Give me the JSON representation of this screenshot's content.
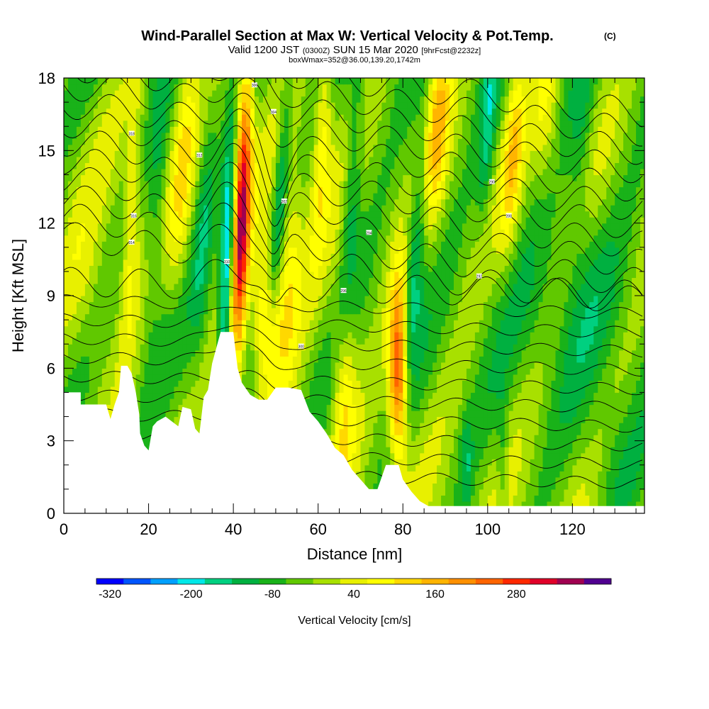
{
  "chart_data": {
    "type": "heatmap",
    "title": "Wind-Parallel Section at Max W: Vertical Velocity & Pot.Temp.",
    "title_mark": "(C)",
    "subtitle_prefix": "Valid 1200 JST",
    "subtitle_zulu": "(0300Z)",
    "subtitle_date": "SUN 15 Mar 2020",
    "subtitle_run": "[9hrFcst@2232z]",
    "subtitle2": "boxWmax=352@36.00,139.20,1742m",
    "xlabel": "Distance [nm]",
    "ylabel": "Height [Kft MSL]",
    "xlim": [
      0,
      137
    ],
    "ylim": [
      0,
      18
    ],
    "xticks": [
      0,
      20,
      40,
      60,
      80,
      100,
      120
    ],
    "yticks": [
      0,
      3,
      6,
      9,
      12,
      15,
      18
    ],
    "colorbar": {
      "label": "Vertical Velocity [cm/s]",
      "min": -340,
      "step": 40,
      "colors": [
        "#0000ff",
        "#0055ff",
        "#00a0ff",
        "#00e8e8",
        "#00d080",
        "#00b040",
        "#19b219",
        "#60c800",
        "#a8e000",
        "#e8f000",
        "#ffff00",
        "#ffd800",
        "#ffb400",
        "#ff9000",
        "#ff6400",
        "#ff2800",
        "#e00028",
        "#a00050",
        "#500090"
      ],
      "tick_labels": [
        "-320",
        "-200",
        "-80",
        "40",
        "160",
        "280"
      ],
      "tick_values": [
        -320,
        -200,
        -80,
        40,
        160,
        280
      ]
    },
    "terrain_kft": [
      [
        0,
        5
      ],
      [
        4,
        5
      ],
      [
        4,
        4.5
      ],
      [
        10,
        4.5
      ],
      [
        11,
        3.9
      ],
      [
        12,
        4.5
      ],
      [
        13,
        5
      ],
      [
        13.5,
        6.1
      ],
      [
        15,
        6.1
      ],
      [
        16,
        5.8
      ],
      [
        17,
        5
      ],
      [
        17.8,
        4.1
      ],
      [
        18,
        3.3
      ],
      [
        19,
        2.8
      ],
      [
        20,
        2.6
      ],
      [
        21,
        3.6
      ],
      [
        22,
        3.8
      ],
      [
        24,
        4
      ],
      [
        27,
        3.6
      ],
      [
        28,
        4.4
      ],
      [
        30,
        4.3
      ],
      [
        31,
        3.5
      ],
      [
        32,
        3.3
      ],
      [
        33,
        4.8
      ],
      [
        34,
        5.1
      ],
      [
        35,
        6.2
      ],
      [
        37,
        7.5
      ],
      [
        40,
        7.5
      ],
      [
        41,
        6
      ],
      [
        42,
        5.4
      ],
      [
        44,
        4.9
      ],
      [
        46,
        4.7
      ],
      [
        48,
        4.7
      ],
      [
        50,
        5.2
      ],
      [
        53,
        5.2
      ],
      [
        56,
        5.1
      ],
      [
        58,
        4.2
      ],
      [
        60,
        3.8
      ],
      [
        62,
        3.3
      ],
      [
        64,
        2.7
      ],
      [
        66,
        2.4
      ],
      [
        68,
        1.8
      ],
      [
        70,
        1.4
      ],
      [
        72,
        1
      ],
      [
        74,
        1
      ],
      [
        75,
        1.5
      ],
      [
        76,
        2
      ],
      [
        79,
        2
      ],
      [
        80,
        1.4
      ],
      [
        82,
        0.9
      ],
      [
        84,
        0.5
      ],
      [
        86,
        0.3
      ],
      [
        137,
        0.3
      ]
    ],
    "w_features": [
      {
        "x": 42,
        "y": 12.5,
        "w": 345,
        "sx": 1.4,
        "sy": 5,
        "tilt": 0.18
      },
      {
        "x": 79,
        "y": 5.8,
        "w": 345,
        "sx": 1.6,
        "sy": 2.6,
        "tilt": 0.05
      },
      {
        "x": 47.5,
        "y": 7.8,
        "w": 200,
        "sx": 2.2,
        "sy": 2.2,
        "tilt": 0.1
      },
      {
        "x": 53,
        "y": 9.5,
        "w": 150,
        "sx": 2.4,
        "sy": 3,
        "tilt": 0.3
      },
      {
        "x": 38.5,
        "y": 10.5,
        "w": -230,
        "sx": 1.1,
        "sy": 3.5,
        "tilt": 0.2
      },
      {
        "x": 51,
        "y": 13,
        "w": -140,
        "sx": 1.2,
        "sy": 4,
        "tilt": 0.4
      },
      {
        "x": 83,
        "y": 11,
        "w": -150,
        "sx": 1.6,
        "sy": 4,
        "tilt": 0.45
      },
      {
        "x": 66,
        "y": 5.5,
        "w": 140,
        "sx": 2,
        "sy": 3,
        "tilt": 0.1
      },
      {
        "x": 88,
        "y": 16.5,
        "w": 160,
        "sx": 2,
        "sy": 3,
        "tilt": 0.3
      },
      {
        "x": 61,
        "y": 15.5,
        "w": 130,
        "sx": 1.5,
        "sy": 3.5,
        "tilt": 0.3
      },
      {
        "x": 68,
        "y": 13.5,
        "w": -120,
        "sx": 1.5,
        "sy": 4,
        "tilt": 0.35
      },
      {
        "x": 100,
        "y": 16,
        "w": -110,
        "sx": 1.4,
        "sy": 3,
        "tilt": 0.3
      },
      {
        "x": 106,
        "y": 15,
        "w": 120,
        "sx": 1.5,
        "sy": 3,
        "tilt": 0.3
      },
      {
        "x": 16,
        "y": 12,
        "w": 110,
        "sx": 1.4,
        "sy": 4,
        "tilt": 0.25
      },
      {
        "x": 22,
        "y": 13,
        "w": -80,
        "sx": 1.6,
        "sy": 4,
        "tilt": 0.3
      },
      {
        "x": 28,
        "y": 14,
        "w": 90,
        "sx": 1.6,
        "sy": 4,
        "tilt": 0.3
      },
      {
        "x": 33,
        "y": 12,
        "w": -80,
        "sx": 1.4,
        "sy": 4,
        "tilt": 0.3
      },
      {
        "x": 122,
        "y": 15,
        "w": -70,
        "sx": 2,
        "sy": 3.5,
        "tilt": 0.2
      },
      {
        "x": 114,
        "y": 17,
        "w": 80,
        "sx": 2,
        "sy": 2.5,
        "tilt": 0.2
      },
      {
        "x": 95,
        "y": 2,
        "w": -80,
        "sx": 1,
        "sy": 1.5,
        "tilt": 0
      },
      {
        "x": 103.5,
        "y": 2,
        "w": -70,
        "sx": 0.9,
        "sy": 2,
        "tilt": 0
      },
      {
        "x": 130,
        "y": 2,
        "w": -60,
        "sx": 5,
        "sy": 2,
        "tilt": 0
      },
      {
        "x": 6,
        "y": 8.5,
        "w": 60,
        "sx": 5,
        "sy": 2.5,
        "tilt": 0
      },
      {
        "x": 120,
        "y": 9,
        "w": -50,
        "sx": 10,
        "sy": 3,
        "tilt": 0
      }
    ],
    "w_background": -30,
    "theta_label_values": [
      "318",
      "316",
      "314",
      "312",
      "310",
      "306",
      "304",
      "302",
      "300",
      "296",
      "294",
      "292",
      "290",
      "288"
    ]
  }
}
